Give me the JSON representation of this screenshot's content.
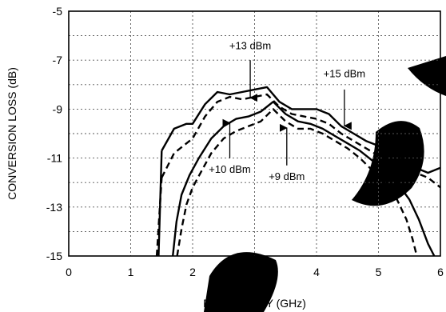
{
  "chart_data": {
    "type": "line",
    "title": "",
    "xlabel": "FREQUENCY (GHz)",
    "ylabel": "CONVERSION LOSS (dB)",
    "xlim": [
      0,
      6
    ],
    "ylim": [
      -15,
      -5
    ],
    "xticks": [
      0,
      1,
      2,
      3,
      4,
      5,
      6
    ],
    "yticks": [
      -5,
      -7,
      -9,
      -11,
      -13,
      -15
    ],
    "grid": true,
    "legend": "none",
    "series": [
      {
        "style": "solid",
        "x": [
          1.5,
          1.7,
          1.9,
          2.0,
          2.2,
          2.4,
          2.6,
          2.8,
          3.0,
          3.2,
          3.4,
          3.6,
          3.8,
          4.0,
          4.2,
          4.4,
          4.6,
          4.8,
          5.0,
          5.2,
          5.4,
          5.6,
          5.8,
          6.0
        ],
        "y": [
          -10.7,
          -9.8,
          -9.6,
          -9.6,
          -8.8,
          -8.3,
          -8.4,
          -8.3,
          -8.2,
          -8.1,
          -8.7,
          -9.0,
          -9.0,
          -9.0,
          -9.2,
          -9.7,
          -10.0,
          -10.3,
          -10.5,
          -10.8,
          -11.0,
          -11.4,
          -11.6,
          -11.4
        ]
      },
      {
        "style": "dashed",
        "x": [
          1.5,
          1.7,
          1.9,
          2.0,
          2.2,
          2.4,
          2.6,
          2.8,
          3.0,
          3.2,
          3.4,
          3.6,
          3.8,
          4.0,
          4.2,
          4.4,
          4.6,
          4.8,
          5.0,
          5.2,
          5.4,
          5.6,
          5.8,
          6.0
        ],
        "y": [
          -11.8,
          -10.8,
          -10.4,
          -10.2,
          -9.3,
          -8.7,
          -8.5,
          -8.6,
          -8.5,
          -8.4,
          -8.9,
          -9.2,
          -9.3,
          -9.4,
          -9.6,
          -10.0,
          -10.3,
          -10.6,
          -10.9,
          -11.1,
          -11.3,
          -11.6,
          -11.8,
          -12.2
        ]
      },
      {
        "style": "solid",
        "x": [
          1.68,
          1.74,
          1.82,
          1.95,
          2.1,
          2.3,
          2.5,
          2.7,
          2.9,
          3.1,
          3.3,
          3.5,
          3.7,
          3.9,
          4.1,
          4.3,
          4.5,
          4.7,
          4.9,
          5.1,
          5.3,
          5.5,
          5.65,
          5.8,
          5.9
        ],
        "y": [
          -15.0,
          -13.6,
          -12.5,
          -11.7,
          -11.0,
          -10.2,
          -9.7,
          -9.4,
          -9.3,
          -9.1,
          -8.7,
          -9.2,
          -9.5,
          -9.6,
          -9.8,
          -10.1,
          -10.4,
          -10.7,
          -11.1,
          -11.5,
          -12.0,
          -12.7,
          -13.5,
          -14.5,
          -15.0
        ]
      },
      {
        "style": "dashed",
        "x": [
          1.75,
          1.82,
          1.9,
          2.0,
          2.15,
          2.3,
          2.5,
          2.7,
          2.9,
          3.1,
          3.3,
          3.5,
          3.7,
          3.9,
          4.1,
          4.3,
          4.5,
          4.7,
          4.9,
          5.1,
          5.3,
          5.45,
          5.55,
          5.62
        ],
        "y": [
          -15.0,
          -13.9,
          -12.9,
          -12.2,
          -11.5,
          -10.8,
          -10.2,
          -9.9,
          -9.7,
          -9.5,
          -9.0,
          -9.5,
          -9.8,
          -9.8,
          -10.0,
          -10.3,
          -10.6,
          -11.0,
          -11.5,
          -12.0,
          -12.7,
          -13.5,
          -14.3,
          -15.0
        ]
      },
      {
        "style": "solid",
        "x": [
          1.45,
          1.5
        ],
        "y": [
          -15.0,
          -10.7
        ]
      },
      {
        "style": "dashed",
        "x": [
          1.42,
          1.5
        ],
        "y": [
          -15.0,
          -11.8
        ]
      }
    ],
    "annotations": [
      {
        "text": "+13 dBm",
        "x": 2.93,
        "y": -6.55,
        "arrow_to": [
          2.93,
          -8.6
        ],
        "arrow_from_y": -7.0
      },
      {
        "text": "+15 dBm",
        "x": 4.45,
        "y": -7.7,
        "arrow_to": [
          4.45,
          -9.75
        ],
        "arrow_from_y": -8.2
      },
      {
        "text": "+10 dBm",
        "x": 2.6,
        "y": -11.6,
        "arrow_to": [
          2.6,
          -9.5
        ],
        "arrow_from_y": -11.0
      },
      {
        "text": "+9 dBm",
        "x": 3.52,
        "y": -11.9,
        "arrow_to": [
          3.52,
          -9.7
        ],
        "arrow_from_y": -11.3
      }
    ]
  }
}
